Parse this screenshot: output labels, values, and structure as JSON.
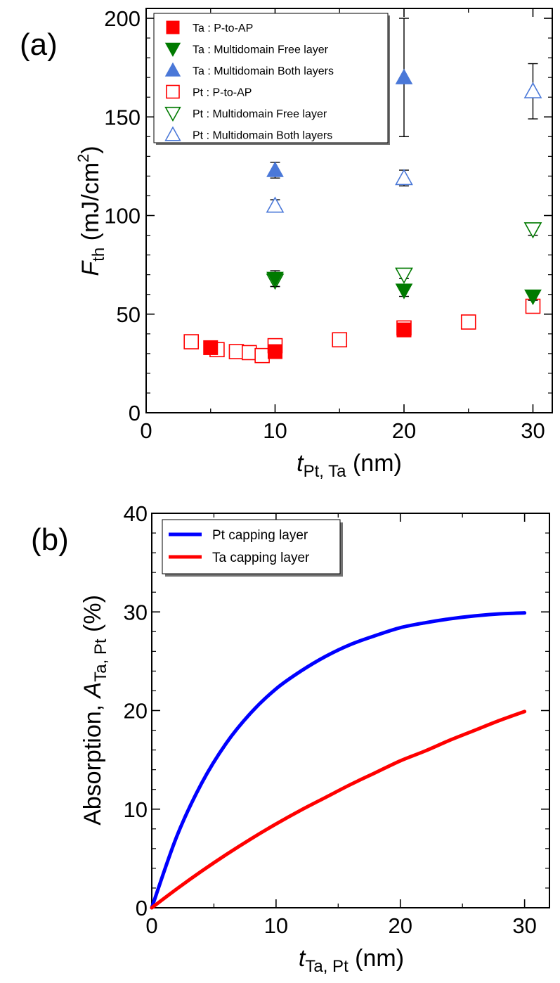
{
  "chart_data": [
    {
      "panel_label": "(a)",
      "type": "scatter",
      "xlabel": {
        "main": "t",
        "sub": "Pt, Ta",
        "unit": " (nm)"
      },
      "ylabel": {
        "main": "F",
        "sub": "th",
        "unit_pre": " (mJ/cm",
        "unit_sup": "2",
        "unit_post": ")"
      },
      "xlim": [
        0,
        31.5
      ],
      "ylim": [
        0,
        205
      ],
      "xticks": [
        0,
        10,
        20,
        30
      ],
      "yticks": [
        0,
        50,
        100,
        150,
        200
      ],
      "legend_position": "top-left",
      "series": [
        {
          "name": "Ta : P-to-AP",
          "marker": "square",
          "filled": true,
          "color": "#ff0000",
          "points": [
            {
              "x": 5,
              "y": 33
            },
            {
              "x": 10,
              "y": 31
            },
            {
              "x": 20,
              "y": 42
            }
          ]
        },
        {
          "name": "Ta : Multidomain Free layer",
          "marker": "triangle-down",
          "filled": true,
          "color": "#007a00",
          "points": [
            {
              "x": 10,
              "y": 68,
              "err": 4
            },
            {
              "x": 20,
              "y": 62,
              "err": 3
            },
            {
              "x": 30,
              "y": 59,
              "err": 2
            }
          ]
        },
        {
          "name": "Ta : Multidomain Both layers",
          "marker": "triangle-up",
          "filled": true,
          "color": "#4a78d8",
          "points": [
            {
              "x": 10,
              "y": 123,
              "err": 4
            },
            {
              "x": 20,
              "y": 170,
              "err": 30
            }
          ]
        },
        {
          "name": "Pt : P-to-AP",
          "marker": "square",
          "filled": false,
          "color": "#ff0000",
          "points": [
            {
              "x": 3.5,
              "y": 36
            },
            {
              "x": 5.5,
              "y": 32
            },
            {
              "x": 7,
              "y": 31
            },
            {
              "x": 8,
              "y": 30.5
            },
            {
              "x": 9,
              "y": 29
            },
            {
              "x": 10,
              "y": 34
            },
            {
              "x": 15,
              "y": 37
            },
            {
              "x": 20,
              "y": 43
            },
            {
              "x": 25,
              "y": 46
            },
            {
              "x": 30,
              "y": 54
            }
          ]
        },
        {
          "name": "Pt : Multidomain Free layer",
          "marker": "triangle-down",
          "filled": false,
          "color": "#007a00",
          "points": [
            {
              "x": 10,
              "y": 67,
              "err": 3
            },
            {
              "x": 20,
              "y": 70,
              "err": 2
            },
            {
              "x": 30,
              "y": 93,
              "err": 3
            }
          ]
        },
        {
          "name": "Pt : Multidomain Both layers",
          "marker": "triangle-up",
          "filled": false,
          "color": "#4a78d8",
          "points": [
            {
              "x": 10,
              "y": 105,
              "err": 3
            },
            {
              "x": 20,
              "y": 119,
              "err": 4
            },
            {
              "x": 30,
              "y": 163,
              "err": 14
            }
          ]
        }
      ]
    },
    {
      "panel_label": "(b)",
      "type": "line",
      "xlabel": {
        "main": "t",
        "sub": "Ta, Pt",
        "unit": " (nm)"
      },
      "ylabel": {
        "prefix": "Absorption, ",
        "main": "A",
        "sub": "Ta, Pt",
        "unit": " (%)"
      },
      "xlim": [
        0,
        32
      ],
      "ylim": [
        0,
        40
      ],
      "xticks": [
        0,
        10,
        20,
        30
      ],
      "yticks": [
        0,
        10,
        20,
        30,
        40
      ],
      "legend_position": "top-left",
      "x": [
        0,
        2,
        4,
        6,
        8,
        10,
        12,
        14,
        16,
        18,
        20,
        22,
        24,
        26,
        28,
        30
      ],
      "series": [
        {
          "name": "Pt capping layer",
          "color": "#0000ff",
          "values": [
            0,
            7.2,
            12.6,
            16.7,
            19.8,
            22.2,
            24.0,
            25.5,
            26.7,
            27.6,
            28.4,
            28.9,
            29.3,
            29.6,
            29.8,
            29.9
          ]
        },
        {
          "name": "Ta capping layer",
          "color": "#ff0000",
          "values": [
            0,
            1.9,
            3.7,
            5.4,
            7.0,
            8.5,
            9.9,
            11.2,
            12.5,
            13.7,
            14.9,
            15.9,
            17.0,
            18.0,
            19.0,
            19.9
          ]
        }
      ]
    }
  ]
}
